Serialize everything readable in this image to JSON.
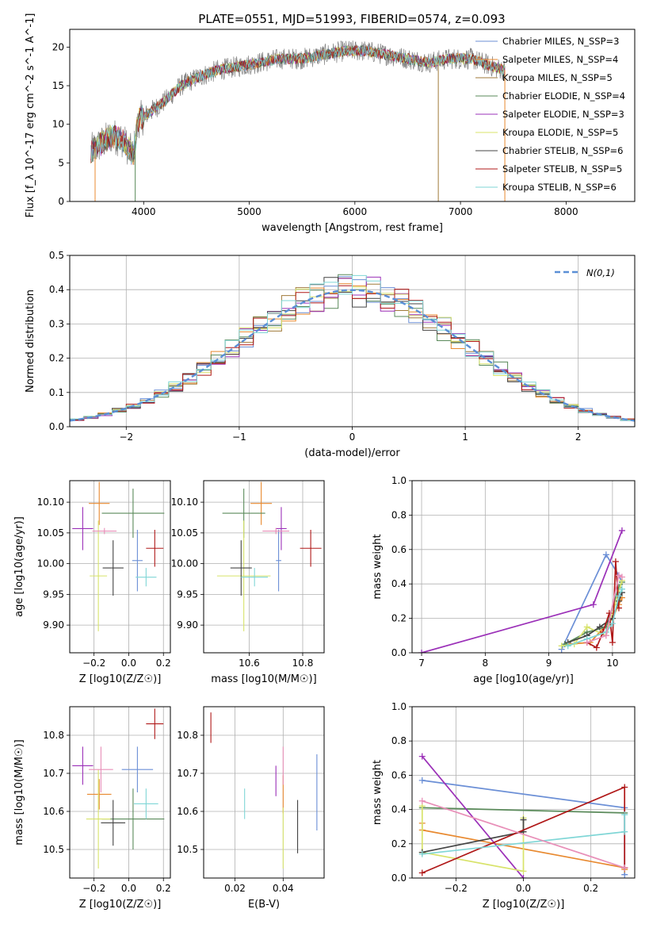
{
  "figure": {
    "title": "PLATE=0551, MJD=51993, FIBERID=0574, z=0.093"
  },
  "legend": {
    "series": [
      {
        "name": "Chabrier MILES, N_SSP=3",
        "color": "#6b8fd6"
      },
      {
        "name": "Salpeter MILES, N_SSP=4",
        "color": "#e8892f"
      },
      {
        "name": "Kroupa MILES, N_SSP=5",
        "color": "#a07a3a"
      },
      {
        "name": "Chabrier ELODIE, N_SSP=4",
        "color": "#5a8a5a"
      },
      {
        "name": "Salpeter ELODIE, N_SSP=3",
        "color": "#9b30b8"
      },
      {
        "name": "Kroupa ELODIE, N_SSP=5",
        "color": "#d8e36a"
      },
      {
        "name": "Chabrier STELIB, N_SSP=6",
        "color": "#444444"
      },
      {
        "name": "Salpeter STELIB, N_SSP=5",
        "color": "#b01818"
      },
      {
        "name": "Kroupa STELIB, N_SSP=6",
        "color": "#7fd6d6"
      }
    ]
  },
  "chart_data": [
    {
      "id": "spectrum",
      "type": "line",
      "title": "PLATE=0551, MJD=51993, FIBERID=0574, z=0.093",
      "xlabel": "wavelength [Angstrom, rest frame]",
      "ylabel": "Flux [f_λ 10^-17 erg cm^-2 s^-1 A^-1]",
      "xlim": [
        3300,
        8650
      ],
      "ylim": [
        0,
        22.3
      ],
      "xticks": [
        4000,
        5000,
        6000,
        7000,
        8000
      ],
      "yticks": [
        0,
        5,
        10,
        15,
        20
      ],
      "grid": false,
      "legend_position": "top-right",
      "x": [
        3500,
        3600,
        3700,
        3800,
        3900,
        3950,
        4050,
        4200,
        4350,
        4500,
        4700,
        4900,
        5100,
        5300,
        5500,
        5700,
        5900,
        6100,
        6300,
        6500,
        6700,
        6900,
        7100,
        7300,
        7420
      ],
      "y": [
        6.5,
        7.5,
        8.5,
        8.0,
        6.0,
        10.5,
        11.5,
        13.0,
        15.0,
        16.0,
        17.0,
        17.5,
        18.0,
        18.5,
        18.5,
        19.0,
        19.5,
        19.5,
        19.0,
        18.5,
        18.0,
        18.5,
        18.5,
        17.5,
        17.0
      ]
    },
    {
      "id": "residuals",
      "type": "line",
      "xlabel": "(data-model)/error",
      "ylabel": "Normed distribution",
      "xlim": [
        -2.5,
        2.5
      ],
      "ylim": [
        0,
        0.5
      ],
      "xticks": [
        -2,
        -1,
        0,
        1,
        2
      ],
      "yticks": [
        0.0,
        0.1,
        0.2,
        0.3,
        0.4,
        0.5
      ],
      "grid": true,
      "legend_position": "top-right",
      "series": [
        {
          "name": "N(0,1)",
          "function": "standard normal pdf",
          "style": "dashed",
          "color": "#5b8fd6"
        }
      ],
      "histogram_bins": 40
    },
    {
      "id": "age-vs-Z",
      "type": "scatter",
      "xlabel": "Z [log10(Z/Z☉)]",
      "ylabel": "age [log10(age/yr)]",
      "xlim": [
        -0.34,
        0.24
      ],
      "ylim": [
        9.855,
        10.135
      ],
      "xticks": [
        -0.2,
        0.0,
        0.2
      ],
      "yticks": [
        9.9,
        9.95,
        10.0,
        10.05,
        10.1
      ],
      "grid": true,
      "points": [
        {
          "color": "#6b8fd6",
          "x": 0.05,
          "xerr": 0.03,
          "y": 10.005,
          "yerr": 0.05
        },
        {
          "color": "#e8892f",
          "x": -0.17,
          "xerr": 0.06,
          "y": 10.098,
          "yerr": 0.035
        },
        {
          "color": "#5a8a5a",
          "x": 0.025,
          "xerr": 0.18,
          "y": 10.082,
          "yerr": 0.04
        },
        {
          "color": "#9b30b8",
          "x": -0.265,
          "xerr": 0.06,
          "y": 10.057,
          "yerr": 0.035
        },
        {
          "color": "#d8e36a",
          "x": -0.175,
          "xerr": 0.05,
          "y": 9.98,
          "yerr": 0.09
        },
        {
          "color": "#444444",
          "x": -0.09,
          "xerr": 0.06,
          "y": 9.993,
          "yerr": 0.045
        },
        {
          "color": "#b01818",
          "x": 0.15,
          "xerr": 0.05,
          "y": 10.025,
          "yerr": 0.03
        },
        {
          "color": "#7fd6d6",
          "x": 0.1,
          "xerr": 0.06,
          "y": 9.978,
          "yerr": 0.015
        },
        {
          "color": "#e88fb8",
          "x": -0.14,
          "xerr": 0.07,
          "y": 10.053,
          "yerr": 0.005
        }
      ]
    },
    {
      "id": "age-vs-mass",
      "type": "scatter",
      "xlabel": "mass [log10(M/M☉)]",
      "ylabel": "",
      "xlim": [
        10.43,
        10.88
      ],
      "ylim": [
        9.855,
        10.135
      ],
      "xticks": [
        10.6,
        10.8
      ],
      "yticks": [
        9.9,
        9.95,
        10.0,
        10.05,
        10.1
      ],
      "grid": true,
      "points": [
        {
          "color": "#6b8fd6",
          "x": 10.71,
          "xerr": 0.01,
          "y": 10.005,
          "yerr": 0.05
        },
        {
          "color": "#e8892f",
          "x": 10.645,
          "xerr": 0.04,
          "y": 10.098,
          "yerr": 0.035
        },
        {
          "color": "#5a8a5a",
          "x": 10.58,
          "xerr": 0.08,
          "y": 10.082,
          "yerr": 0.04
        },
        {
          "color": "#9b30b8",
          "x": 10.72,
          "xerr": 0.02,
          "y": 10.057,
          "yerr": 0.035
        },
        {
          "color": "#d8e36a",
          "x": 10.58,
          "xerr": 0.1,
          "y": 9.98,
          "yerr": 0.09
        },
        {
          "color": "#444444",
          "x": 10.57,
          "xerr": 0.04,
          "y": 9.993,
          "yerr": 0.045
        },
        {
          "color": "#b01818",
          "x": 10.83,
          "xerr": 0.04,
          "y": 10.025,
          "yerr": 0.03
        },
        {
          "color": "#7fd6d6",
          "x": 10.62,
          "xerr": 0.05,
          "y": 9.978,
          "yerr": 0.015
        },
        {
          "color": "#e88fb8",
          "x": 10.7,
          "xerr": 0.05,
          "y": 10.053,
          "yerr": 0.005
        }
      ]
    },
    {
      "id": "weight-vs-age",
      "type": "line",
      "xlabel": "age [log10(age/yr)]",
      "ylabel": "mass weight",
      "xlim": [
        6.85,
        10.35
      ],
      "ylim": [
        0,
        1
      ],
      "xticks": [
        7,
        8,
        9,
        10
      ],
      "yticks": [
        0.0,
        0.2,
        0.4,
        0.6,
        0.8,
        1.0
      ],
      "grid": true,
      "series": [
        {
          "color": "#6b8fd6",
          "x": [
            9.2,
            9.9,
            10.1,
            10.15
          ],
          "y": [
            0.02,
            0.57,
            0.45,
            0.41
          ]
        },
        {
          "color": "#e8892f",
          "x": [
            9.3,
            9.65,
            10.0,
            10.1,
            10.15
          ],
          "y": [
            0.05,
            0.06,
            0.2,
            0.28,
            0.32
          ]
        },
        {
          "color": "#5a8a5a",
          "x": [
            9.25,
            9.6,
            9.9,
            10.1,
            10.15
          ],
          "y": [
            0.05,
            0.12,
            0.15,
            0.38,
            0.41
          ]
        },
        {
          "color": "#9b30b8",
          "x": [
            7.0,
            9.7,
            10.15
          ],
          "y": [
            0.0,
            0.28,
            0.71
          ]
        },
        {
          "color": "#d8e36a",
          "x": [
            9.2,
            9.4,
            9.6,
            9.9,
            10.15
          ],
          "y": [
            0.04,
            0.05,
            0.15,
            0.1,
            0.42
          ]
        },
        {
          "color": "#444444",
          "x": [
            9.3,
            9.6,
            9.8,
            10.0,
            10.1,
            10.15
          ],
          "y": [
            0.06,
            0.1,
            0.15,
            0.2,
            0.3,
            0.35
          ]
        },
        {
          "color": "#b01818",
          "x": [
            9.6,
            9.75,
            9.85,
            9.95,
            10.0,
            10.05,
            10.1
          ],
          "y": [
            0.06,
            0.03,
            0.12,
            0.23,
            0.06,
            0.53,
            0.26
          ]
        },
        {
          "color": "#7fd6d6",
          "x": [
            9.3,
            9.6,
            9.9,
            10.0,
            10.1,
            10.15
          ],
          "y": [
            0.04,
            0.08,
            0.12,
            0.17,
            0.33,
            0.37
          ]
        },
        {
          "color": "#e88fb8",
          "x": [
            9.6,
            9.9,
            10.1,
            10.15
          ],
          "y": [
            0.06,
            0.1,
            0.45,
            0.44
          ]
        }
      ]
    },
    {
      "id": "mass-vs-Z",
      "type": "scatter",
      "xlabel": "Z [log10(Z/Z☉)]",
      "ylabel": "mass [log10(M/M☉)]",
      "xlim": [
        -0.34,
        0.24
      ],
      "ylim": [
        10.425,
        10.875
      ],
      "xticks": [
        -0.2,
        0.0,
        0.2
      ],
      "yticks": [
        10.5,
        10.6,
        10.7,
        10.8
      ],
      "grid": true,
      "points": [
        {
          "color": "#6b8fd6",
          "x": 0.05,
          "xerr": 0.09,
          "y": 10.71,
          "yerr": 0.06
        },
        {
          "color": "#e8892f",
          "x": -0.17,
          "xerr": 0.07,
          "y": 10.645,
          "yerr": 0.04
        },
        {
          "color": "#5a8a5a",
          "x": 0.025,
          "xerr": 0.18,
          "y": 10.58,
          "yerr": 0.08
        },
        {
          "color": "#9b30b8",
          "x": -0.265,
          "xerr": 0.06,
          "y": 10.72,
          "yerr": 0.05
        },
        {
          "color": "#d8e36a",
          "x": -0.175,
          "xerr": 0.07,
          "y": 10.58,
          "yerr": 0.13
        },
        {
          "color": "#444444",
          "x": -0.09,
          "xerr": 0.07,
          "y": 10.57,
          "yerr": 0.06
        },
        {
          "color": "#b01818",
          "x": 0.15,
          "xerr": 0.05,
          "y": 10.83,
          "yerr": 0.04
        },
        {
          "color": "#7fd6d6",
          "x": 0.1,
          "xerr": 0.07,
          "y": 10.62,
          "yerr": 0.04
        },
        {
          "color": "#e88fb8",
          "x": -0.16,
          "xerr": 0.07,
          "y": 10.71,
          "yerr": 0.06
        }
      ]
    },
    {
      "id": "mass-vs-ebv",
      "type": "scatter",
      "xlabel": "E(B-V)",
      "ylabel": "",
      "xlim": [
        0.007,
        0.057
      ],
      "ylim": [
        10.425,
        10.875
      ],
      "xticks": [
        0.02,
        0.04
      ],
      "yticks": [
        10.5,
        10.6,
        10.7,
        10.8
      ],
      "grid": true,
      "points": [
        {
          "color": "#6b8fd6",
          "x": 0.054,
          "y": 10.65,
          "yerr": 0.1
        },
        {
          "color": "#e8892f",
          "x": 0.04,
          "y": 10.645,
          "yerr": 0.05
        },
        {
          "color": "#9b30b8",
          "x": 0.037,
          "y": 10.68,
          "yerr": 0.04
        },
        {
          "color": "#d8e36a",
          "x": 0.04,
          "y": 10.53,
          "yerr": 0.08
        },
        {
          "color": "#444444",
          "x": 0.046,
          "y": 10.56,
          "yerr": 0.07
        },
        {
          "color": "#b01818",
          "x": 0.01,
          "y": 10.82,
          "yerr": 0.04
        },
        {
          "color": "#7fd6d6",
          "x": 0.024,
          "y": 10.62,
          "yerr": 0.04
        },
        {
          "color": "#e88fb8",
          "x": 0.04,
          "y": 10.72,
          "yerr": 0.05
        }
      ]
    },
    {
      "id": "weight-vs-Z",
      "type": "line",
      "xlabel": "Z [log10(Z/Z☉)]",
      "ylabel": "mass weight",
      "xlim": [
        -0.33,
        0.33
      ],
      "ylim": [
        0,
        1
      ],
      "xticks": [
        -0.2,
        0.0,
        0.2
      ],
      "yticks": [
        0.0,
        0.2,
        0.4,
        0.6,
        0.8,
        1.0
      ],
      "grid": true,
      "series": [
        {
          "color": "#6b8fd6",
          "x": [
            -0.3,
            0.3,
            0.3
          ],
          "y": [
            0.57,
            0.41,
            0.02
          ]
        },
        {
          "color": "#e8892f",
          "x": [
            -0.3,
            -0.3,
            0.3,
            0.3
          ],
          "y": [
            0.32,
            0.28,
            0.06,
            0.05
          ]
        },
        {
          "color": "#5a8a5a",
          "x": [
            -0.3,
            0.3
          ],
          "y": [
            0.41,
            0.38
          ]
        },
        {
          "color": "#9b30b8",
          "x": [
            -0.3,
            0.0
          ],
          "y": [
            0.71,
            0.0
          ]
        },
        {
          "color": "#d8e36a",
          "x": [
            -0.3,
            -0.3,
            0.0,
            0.0
          ],
          "y": [
            0.42,
            0.15,
            0.04,
            0.35
          ]
        },
        {
          "color": "#444444",
          "x": [
            -0.3,
            0.0,
            0.0
          ],
          "y": [
            0.15,
            0.27,
            0.34
          ]
        },
        {
          "color": "#b01818",
          "x": [
            -0.3,
            0.3,
            0.3
          ],
          "y": [
            0.03,
            0.53,
            0.06
          ]
        },
        {
          "color": "#7fd6d6",
          "x": [
            -0.3,
            0.3,
            0.3
          ],
          "y": [
            0.14,
            0.27,
            0.37
          ]
        },
        {
          "color": "#e88fb8",
          "x": [
            -0.3,
            0.3
          ],
          "y": [
            0.45,
            0.06
          ]
        }
      ]
    }
  ]
}
